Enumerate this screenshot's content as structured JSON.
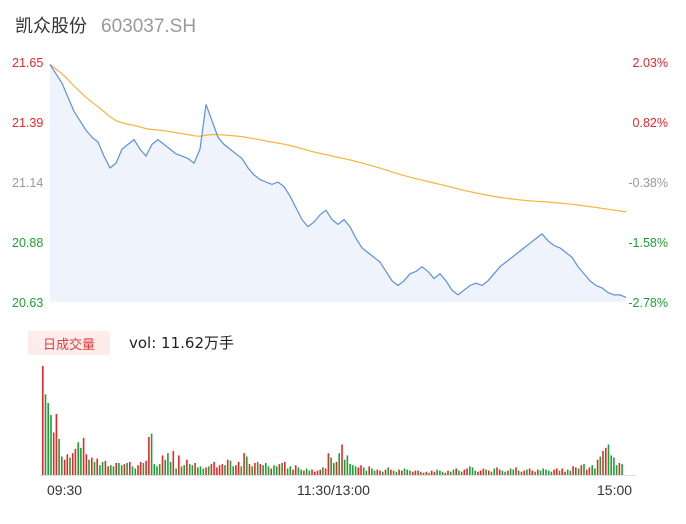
{
  "header": {
    "name": "凯众股份",
    "code": "603037.SH"
  },
  "volume_tab": {
    "label": "日成交量"
  },
  "volume_readout": "vol: 11.62万手",
  "price_axis": [
    "21.65",
    "21.39",
    "21.14",
    "20.88",
    "20.63"
  ],
  "pct_axis": [
    "2.03%",
    "0.82%",
    "-0.38%",
    "-1.58%",
    "-2.78%"
  ],
  "time_axis": [
    "09:30",
    "11:30/13:00",
    "15:00"
  ],
  "colors": {
    "up": "#e8262a",
    "down": "#1ca035",
    "neutral": "#999999",
    "price_line": "#5b8fe6",
    "avg_line": "#f5b63a",
    "area_fill": "#eef3fc"
  },
  "chart_data": [
    {
      "type": "line",
      "xlabel": "",
      "ylabel": "",
      "ylim": [
        20.63,
        21.65
      ],
      "ylim_right_pct": [
        -2.78,
        2.03
      ],
      "x_range": [
        "09:30",
        "15:00"
      ],
      "series": [
        {
          "values": [
            21.64,
            21.6,
            21.56,
            21.5,
            21.44,
            21.4,
            21.36,
            21.33,
            21.31,
            21.25,
            21.2,
            21.22,
            21.28,
            21.3,
            21.32,
            21.28,
            21.25,
            21.3,
            21.32,
            21.3,
            21.28,
            21.26,
            21.25,
            21.24,
            21.22,
            21.28,
            21.47,
            21.4,
            21.33,
            21.3,
            21.28,
            21.26,
            21.24,
            21.2,
            21.17,
            21.15,
            21.14,
            21.13,
            21.14,
            21.12,
            21.08,
            21.03,
            20.98,
            20.95,
            20.97,
            21.0,
            21.02,
            20.98,
            20.96,
            20.98,
            20.95,
            20.9,
            20.86,
            20.84,
            20.82,
            20.8,
            20.76,
            20.72,
            20.7,
            20.72,
            20.75,
            20.76,
            20.78,
            20.76,
            20.73,
            20.75,
            20.72,
            20.68,
            20.66,
            20.68,
            20.7,
            20.71,
            20.7,
            20.72,
            20.75,
            20.78,
            20.8,
            20.82,
            20.84,
            20.86,
            20.88,
            20.9,
            20.92,
            20.89,
            20.87,
            20.86,
            20.84,
            20.82,
            20.78,
            20.75,
            20.72,
            20.7,
            20.69,
            20.67,
            20.66,
            20.66,
            20.65
          ]
        }
      ]
    },
    {
      "type": "bar",
      "xlabel": "",
      "ylabel": "",
      "ylim": [
        0,
        100
      ],
      "series": [
        {
          "name": "",
          "values": [
            100,
            74,
            66,
            55,
            39,
            56,
            33,
            17,
            14,
            19,
            16,
            20,
            24,
            30,
            25,
            34,
            19,
            14,
            16,
            12,
            15,
            9,
            12,
            13,
            8,
            9,
            8,
            11,
            11,
            9,
            10,
            11,
            12,
            8,
            6,
            9,
            12,
            11,
            13,
            35,
            38,
            10,
            8,
            10,
            18,
            14,
            20,
            12,
            22,
            6,
            18,
            8,
            9,
            14,
            10,
            9,
            11,
            7,
            8,
            6,
            7,
            8,
            10,
            12,
            7,
            9,
            10,
            9,
            14,
            13,
            8,
            9,
            12,
            8,
            20,
            17,
            10,
            8,
            11,
            12,
            10,
            9,
            11,
            8,
            6,
            9,
            8,
            10,
            11,
            12,
            6,
            8,
            5,
            9,
            7,
            5,
            4,
            6,
            4,
            5,
            3,
            4,
            5,
            7,
            6,
            20,
            16,
            11,
            12,
            20,
            28,
            14,
            18,
            10,
            9,
            8,
            7,
            9,
            7,
            4,
            8,
            6,
            4,
            5,
            4,
            3,
            5,
            7,
            5,
            4,
            3,
            5,
            4,
            6,
            5,
            4,
            3,
            4,
            4,
            3,
            2,
            3,
            2,
            4,
            3,
            5,
            4,
            3,
            2,
            4,
            3,
            5,
            6,
            4,
            3,
            5,
            6,
            8,
            7,
            4,
            3,
            4,
            6,
            5,
            4,
            3,
            6,
            7,
            5,
            4,
            3,
            4,
            6,
            5,
            7,
            4,
            3,
            4,
            5,
            6,
            4,
            3,
            5,
            4,
            6,
            5,
            4,
            3,
            5,
            6,
            4,
            6,
            3,
            5,
            4,
            8,
            7,
            6,
            9,
            10,
            5,
            7,
            9,
            6,
            14,
            17,
            22,
            25,
            28,
            18,
            16,
            9,
            11,
            10
          ]
        }
      ]
    }
  ]
}
